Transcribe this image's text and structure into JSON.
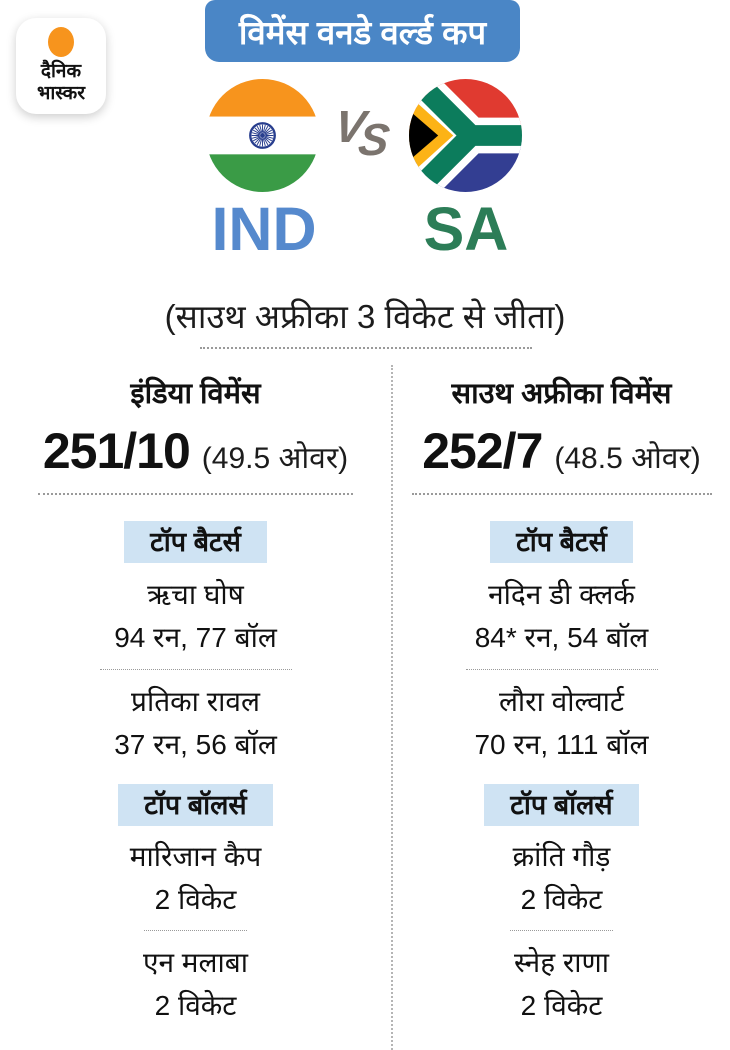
{
  "brand": {
    "name_line1": "दैनिक",
    "name_line2": "भास्कर"
  },
  "banner": {
    "title": "विमेंस वनडे वर्ल्ड कप"
  },
  "matchup": {
    "vs_v": "V",
    "vs_s": "S",
    "team1": {
      "code": "IND",
      "flag": "india-flag"
    },
    "team2": {
      "code": "SA",
      "flag": "south-africa-flag"
    }
  },
  "result_line": "(साउथ अफ्रीका 3 विकेट से जीता)",
  "innings": [
    {
      "team": "इंडिया विमेंस",
      "score": "251/10",
      "overs": "(49.5 ओवर)",
      "batters_label": "टॉप बैटर्स",
      "batters": [
        {
          "name": "ऋचा घोष",
          "stat": "94 रन, 77 बॉल"
        },
        {
          "name": "प्रतिका रावल",
          "stat": "37 रन, 56 बॉल"
        }
      ],
      "bowlers_label": "टॉप बॉलर्स",
      "bowlers": [
        {
          "name": "मारिजान कैप",
          "stat": "2 विकेट"
        },
        {
          "name": "एन मलाबा",
          "stat": "2 विकेट"
        }
      ]
    },
    {
      "team": "साउथ अफ्रीका विमेंस",
      "score": "252/7",
      "overs": "(48.5 ओवर)",
      "batters_label": "टॉप बैटर्स",
      "batters": [
        {
          "name": "नदिन डी क्लर्क",
          "stat": "84* रन, 54 बॉल"
        },
        {
          "name": "लौरा वोल्वार्ट",
          "stat": "70 रन, 111 बॉल"
        }
      ],
      "bowlers_label": "टॉप बॉलर्स",
      "bowlers": [
        {
          "name": "क्रांति गौड़",
          "stat": "2 विकेट"
        },
        {
          "name": "स्नेह राणा",
          "stat": "2 विकेट"
        }
      ]
    }
  ],
  "colors": {
    "banner_bg": "#4a86c6",
    "banner_text": "#ffffff",
    "badge_bg": "#cfe3f3",
    "ind_text": "#5589cd",
    "sa_text": "#2c7d57",
    "vs_text": "#7b746e",
    "text": "#111111",
    "divider": "#9a9a9a"
  }
}
